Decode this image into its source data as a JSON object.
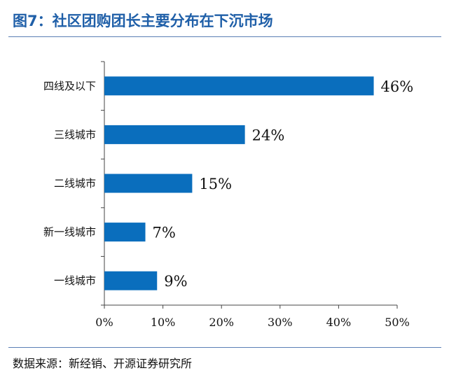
{
  "header": {
    "title": "图7：社区团购团长主要分布在下沉市场"
  },
  "footer": {
    "source": "数据来源：新经销、开源证券研究所"
  },
  "chart_data": {
    "type": "bar",
    "orientation": "horizontal",
    "categories": [
      "四线及以下",
      "三线城市",
      "二线城市",
      "新一线城市",
      "一线城市"
    ],
    "values": [
      46,
      24,
      15,
      7,
      9
    ],
    "value_labels": [
      "46%",
      "24%",
      "15%",
      "7%",
      "9%"
    ],
    "x_ticks": [
      "0%",
      "10%",
      "20%",
      "30%",
      "40%",
      "50%"
    ],
    "xlim": [
      0,
      50
    ],
    "bar_color": "#0a6ebd",
    "grid": false,
    "legend": "none"
  }
}
